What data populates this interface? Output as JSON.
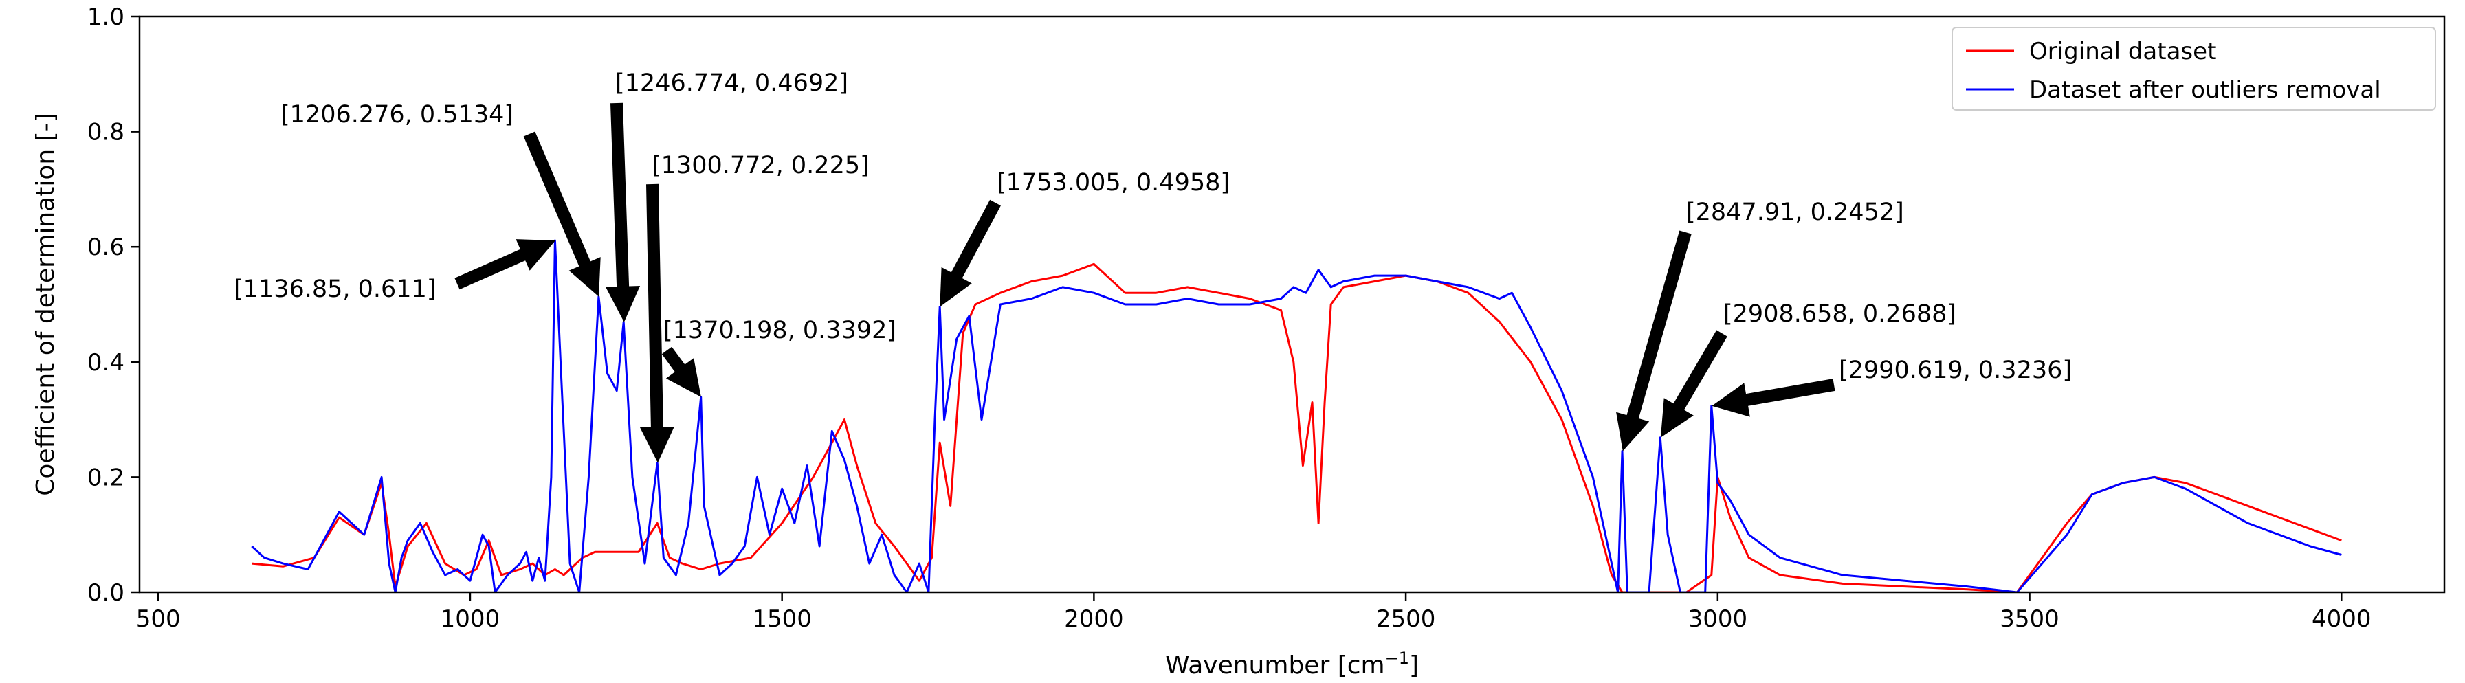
{
  "chart_data": {
    "type": "line",
    "xlabel": "Wavenumber [cm",
    "xlabel_sup": "−1",
    "xlabel_suffix": "]",
    "ylabel": "Coefficient of determination [-]",
    "xlim": [
      470,
      4165
    ],
    "ylim": [
      0,
      1
    ],
    "xticks": [
      500,
      1000,
      1500,
      2000,
      2500,
      3000,
      3500,
      4000
    ],
    "yticks": [
      0.0,
      0.2,
      0.4,
      0.6,
      0.8,
      1.0
    ],
    "xtick_labels": [
      "500",
      "1000",
      "1500",
      "2000",
      "2500",
      "3000",
      "3500",
      "4000"
    ],
    "ytick_labels": [
      "0.0",
      "0.2",
      "0.4",
      "0.6",
      "0.8",
      "1.0"
    ],
    "grid": false,
    "legend_position": "top-right",
    "series": [
      {
        "name": "Original dataset",
        "color": "#ff0000",
        "x": [
          650,
          700,
          750,
          790,
          830,
          858,
          870,
          880,
          900,
          930,
          960,
          990,
          1010,
          1030,
          1050,
          1080,
          1100,
          1120,
          1136,
          1150,
          1180,
          1200,
          1246,
          1270,
          1300,
          1320,
          1340,
          1370,
          1400,
          1450,
          1500,
          1550,
          1580,
          1600,
          1620,
          1650,
          1680,
          1700,
          1720,
          1740,
          1753,
          1770,
          1790,
          1810,
          1850,
          1900,
          1950,
          2000,
          2050,
          2100,
          2150,
          2200,
          2250,
          2300,
          2320,
          2335,
          2350,
          2360,
          2370,
          2380,
          2400,
          2450,
          2500,
          2550,
          2600,
          2650,
          2700,
          2750,
          2800,
          2830,
          2847,
          2860,
          2880,
          2908,
          2950,
          2990,
          3000,
          3020,
          3050,
          3100,
          3200,
          3300,
          3400,
          3480,
          3520,
          3560,
          3600,
          3650,
          3700,
          3750,
          3800,
          3850,
          3900,
          3950,
          4000
        ],
        "values": [
          0.05,
          0.045,
          0.06,
          0.13,
          0.1,
          0.19,
          0.1,
          0.01,
          0.08,
          0.12,
          0.05,
          0.03,
          0.04,
          0.09,
          0.03,
          0.04,
          0.05,
          0.03,
          0.04,
          0.03,
          0.06,
          0.07,
          0.07,
          0.07,
          0.12,
          0.06,
          0.05,
          0.04,
          0.05,
          0.06,
          0.12,
          0.2,
          0.26,
          0.3,
          0.22,
          0.12,
          0.08,
          0.05,
          0.02,
          0.06,
          0.26,
          0.15,
          0.45,
          0.5,
          0.52,
          0.54,
          0.55,
          0.57,
          0.52,
          0.52,
          0.53,
          0.52,
          0.51,
          0.49,
          0.4,
          0.22,
          0.33,
          0.12,
          0.33,
          0.5,
          0.53,
          0.54,
          0.55,
          0.54,
          0.52,
          0.47,
          0.4,
          0.3,
          0.15,
          0.03,
          0.0,
          0.0,
          0.0,
          0.0,
          0.0,
          0.03,
          0.2,
          0.13,
          0.06,
          0.03,
          0.015,
          0.01,
          0.005,
          0.0,
          0.06,
          0.12,
          0.17,
          0.19,
          0.2,
          0.19,
          0.17,
          0.15,
          0.13,
          0.11,
          0.09
        ]
      },
      {
        "name": "Dataset after outliers removal",
        "color": "#0000ff",
        "x": [
          650,
          670,
          700,
          740,
          760,
          790,
          810,
          830,
          858,
          870,
          880,
          890,
          900,
          920,
          940,
          960,
          980,
          1000,
          1020,
          1030,
          1040,
          1060,
          1080,
          1090,
          1100,
          1110,
          1120,
          1130,
          1136,
          1145,
          1160,
          1175,
          1190,
          1206,
          1220,
          1235,
          1246,
          1260,
          1280,
          1300,
          1310,
          1330,
          1350,
          1370,
          1375,
          1400,
          1420,
          1440,
          1460,
          1480,
          1500,
          1520,
          1540,
          1560,
          1580,
          1600,
          1620,
          1640,
          1660,
          1680,
          1700,
          1720,
          1735,
          1745,
          1753,
          1760,
          1780,
          1800,
          1820,
          1850,
          1900,
          1950,
          2000,
          2050,
          2100,
          2150,
          2200,
          2250,
          2300,
          2320,
          2340,
          2360,
          2380,
          2400,
          2450,
          2500,
          2550,
          2600,
          2650,
          2670,
          2700,
          2750,
          2800,
          2830,
          2840,
          2847,
          2855,
          2870,
          2890,
          2908,
          2920,
          2940,
          2960,
          2980,
          2990,
          3000,
          3020,
          3050,
          3100,
          3200,
          3300,
          3400,
          3480,
          3520,
          3560,
          3600,
          3650,
          3700,
          3750,
          3800,
          3850,
          3900,
          3950,
          4000
        ],
        "values": [
          0.08,
          0.06,
          0.05,
          0.04,
          0.08,
          0.14,
          0.12,
          0.1,
          0.2,
          0.05,
          0.0,
          0.06,
          0.09,
          0.12,
          0.07,
          0.03,
          0.04,
          0.02,
          0.1,
          0.08,
          0.0,
          0.03,
          0.05,
          0.07,
          0.02,
          0.06,
          0.02,
          0.2,
          0.611,
          0.4,
          0.05,
          0.0,
          0.2,
          0.5134,
          0.38,
          0.35,
          0.4692,
          0.2,
          0.05,
          0.225,
          0.06,
          0.03,
          0.12,
          0.3392,
          0.15,
          0.03,
          0.05,
          0.08,
          0.2,
          0.1,
          0.18,
          0.12,
          0.22,
          0.08,
          0.28,
          0.23,
          0.15,
          0.05,
          0.1,
          0.03,
          0.0,
          0.05,
          0.0,
          0.3,
          0.4958,
          0.3,
          0.44,
          0.48,
          0.3,
          0.5,
          0.51,
          0.53,
          0.52,
          0.5,
          0.5,
          0.51,
          0.5,
          0.5,
          0.51,
          0.53,
          0.52,
          0.56,
          0.53,
          0.54,
          0.55,
          0.55,
          0.54,
          0.53,
          0.51,
          0.52,
          0.46,
          0.35,
          0.2,
          0.05,
          0.0,
          0.2452,
          0.0,
          0.0,
          0.0,
          0.2688,
          0.1,
          0.0,
          0.0,
          0.0,
          0.3236,
          0.19,
          0.16,
          0.1,
          0.06,
          0.03,
          0.02,
          0.01,
          0.0,
          0.05,
          0.1,
          0.17,
          0.19,
          0.2,
          0.18,
          0.15,
          0.12,
          0.1,
          0.08,
          0.065
        ]
      }
    ],
    "annotations": [
      {
        "label": "[1136.85, 0.611]",
        "x": 1136.85,
        "y": 0.611
      },
      {
        "label": "[1206.276, 0.5134]",
        "x": 1206.276,
        "y": 0.5134
      },
      {
        "label": "[1246.774, 0.4692]",
        "x": 1246.774,
        "y": 0.4692
      },
      {
        "label": "[1300.772, 0.225]",
        "x": 1300.772,
        "y": 0.225
      },
      {
        "label": "[1370.198, 0.3392]",
        "x": 1370.198,
        "y": 0.3392
      },
      {
        "label": "[1753.005, 0.4958]",
        "x": 1753.005,
        "y": 0.4958
      },
      {
        "label": "[2847.91, 0.2452]",
        "x": 2847.91,
        "y": 0.2452
      },
      {
        "label": "[2908.658, 0.2688]",
        "x": 2908.658,
        "y": 0.2688
      },
      {
        "label": "[2990.619, 0.3236]",
        "x": 2990.619,
        "y": 0.3236
      }
    ]
  }
}
